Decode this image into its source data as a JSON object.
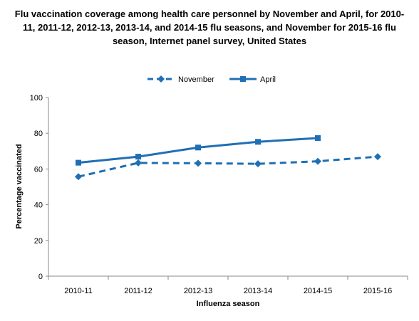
{
  "chart_data": {
    "type": "line",
    "title": "Flu vaccination coverage among health care personnel by November and April, for 2010-11, 2011-12, 2012-13, 2013-14, and 2014-15 flu seasons, and November for 2015-16 flu season, Internet panel survey, United States",
    "xlabel": "Influenza season",
    "ylabel": "Percentage vaccinated",
    "categories": [
      "2010-11",
      "2011-12",
      "2012-13",
      "2013-14",
      "2014-15",
      "2015-16"
    ],
    "ylim": [
      0,
      100
    ],
    "yticks": [
      0,
      20,
      40,
      60,
      80,
      100
    ],
    "legend_position": "top-center",
    "grid": false,
    "series": [
      {
        "name": "November",
        "line_style": "dashed",
        "marker": "diamond",
        "color": "#1F6FB4",
        "values": [
          55.7,
          63.4,
          63.2,
          62.9,
          64.3,
          66.9
        ]
      },
      {
        "name": "April",
        "line_style": "solid",
        "marker": "square",
        "color": "#1F6FB4",
        "values": [
          63.5,
          66.9,
          72.0,
          75.2,
          77.3,
          null
        ]
      }
    ]
  }
}
